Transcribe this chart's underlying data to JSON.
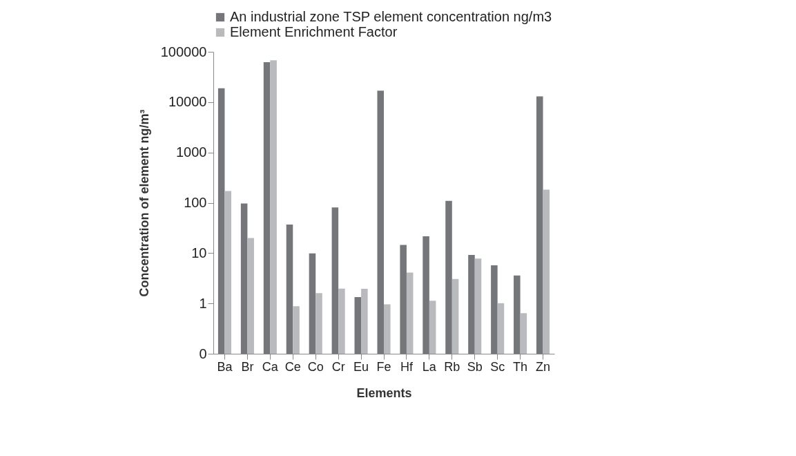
{
  "chart_data": {
    "type": "bar",
    "xlabel": "Elements",
    "ylabel": "Concentration of element ng/m³",
    "categories": [
      "Ba",
      "Br",
      "Ca",
      "Ce",
      "Co",
      "Cr",
      "Eu",
      "Fe",
      "Hf",
      "La",
      "Rb",
      "Sb",
      "Sc",
      "Th",
      "Zn"
    ],
    "series": [
      {
        "name": "An industrial zone TSP element concentration ng/m3",
        "color": "#75767a",
        "values": [
          18800,
          97,
          62100,
          37,
          9.9,
          81,
          1.34,
          16900,
          14.5,
          21.6,
          109,
          9.2,
          5.7,
          3.6,
          13000
        ]
      },
      {
        "name": "Element Enrichment Factor",
        "color": "#b9babd",
        "values": [
          171,
          20,
          67700,
          0.88,
          1.6,
          1.97,
          1.95,
          0.96,
          4.1,
          1.13,
          3.06,
          7.8,
          1.01,
          0.64,
          182
        ]
      }
    ],
    "log": true,
    "ylim": [
      0.1,
      100000
    ],
    "yticks": [
      {
        "value": 0.1,
        "label": "0"
      },
      1,
      10,
      100,
      1000,
      10000,
      100000
    ],
    "grid": false,
    "legend": "top"
  }
}
